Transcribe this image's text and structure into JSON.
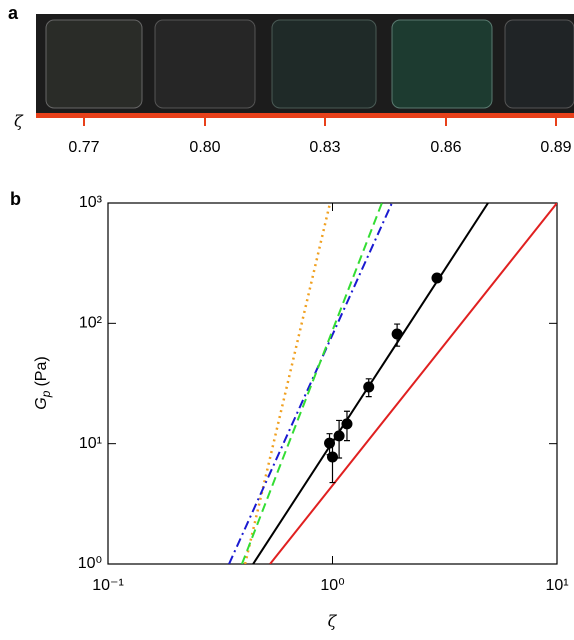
{
  "photo_panel": {
    "label": "a",
    "axis_symbol": "ζ",
    "ticks": [
      "0.77",
      "0.80",
      "0.83",
      "0.86",
      "0.89"
    ]
  },
  "chart_data": {
    "type": "line",
    "panel_label": "b",
    "xlabel": "ζ",
    "ylabel": {
      "main": "G",
      "sub": "p",
      "unit": "(Pa)"
    },
    "log_x": true,
    "log_y": true,
    "xlim": [
      0.1,
      10
    ],
    "ylim": [
      1,
      1000
    ],
    "xticks": [
      {
        "value": 0.1,
        "label": "10⁻¹"
      },
      {
        "value": 1,
        "label": "10⁰"
      },
      {
        "value": 10,
        "label": "10¹"
      }
    ],
    "yticks": [
      {
        "value": 1,
        "label": "10⁰"
      },
      {
        "value": 10,
        "label": "10¹"
      },
      {
        "value": 100,
        "label": "10²"
      },
      {
        "value": 1000,
        "label": "10³"
      }
    ],
    "series": [
      {
        "kind": "line",
        "color": "#f0a020",
        "dash": "dot",
        "x": [
          0.408,
          0.975
        ],
        "values": [
          1,
          1000
        ]
      },
      {
        "kind": "line",
        "color": "#1a1ad0",
        "dash": "dashdot",
        "x": [
          0.346,
          1.84
        ],
        "values": [
          1,
          1000
        ]
      },
      {
        "kind": "line",
        "color": "#33dd33",
        "dash": "dash",
        "x": [
          0.395,
          1.66
        ],
        "values": [
          1,
          1000
        ]
      },
      {
        "kind": "line",
        "color": "#000000",
        "dash": "solid",
        "x": [
          0.443,
          4.93
        ],
        "values": [
          1,
          1000
        ]
      },
      {
        "kind": "line",
        "color": "#e02020",
        "dash": "solid",
        "x": [
          0.527,
          10
        ],
        "values": [
          1,
          1000
        ]
      },
      {
        "kind": "scatter",
        "color": "#000000",
        "x": [
          0.97,
          1.0,
          1.07,
          1.16,
          1.45,
          1.94,
          2.92
        ],
        "values": [
          10.1,
          7.75,
          11.6,
          14.6,
          29.6,
          81.6,
          238
        ],
        "errors": [
          2,
          3,
          4,
          4,
          5,
          17,
          15
        ]
      }
    ]
  }
}
